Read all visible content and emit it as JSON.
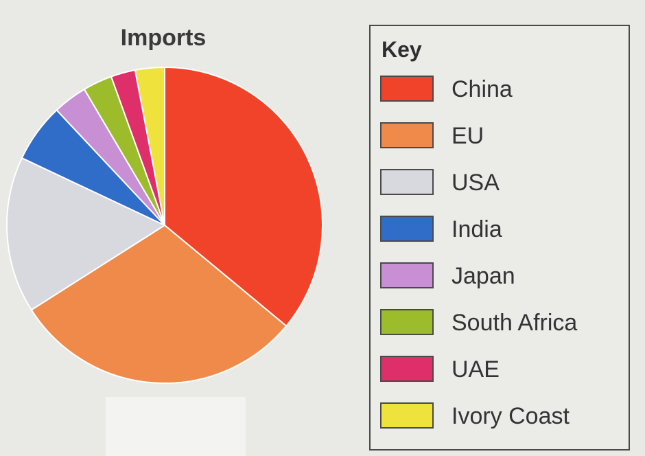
{
  "chart_data": {
    "type": "pie",
    "title": "Imports",
    "legend_title": "Key",
    "legend_position": "right",
    "slices": [
      {
        "label": "China",
        "value": 36,
        "color": "#f0432a"
      },
      {
        "label": "EU",
        "value": 30,
        "color": "#f08a4b"
      },
      {
        "label": "USA",
        "value": 16,
        "color": "#d8d8df"
      },
      {
        "label": "India",
        "value": 6,
        "color": "#2f6dc8"
      },
      {
        "label": "Japan",
        "value": 3.5,
        "color": "#c88fd4"
      },
      {
        "label": "South Africa",
        "value": 3,
        "color": "#9cbc2c"
      },
      {
        "label": "UAE",
        "value": 2.5,
        "color": "#df2f6b"
      },
      {
        "label": "Ivory Coast",
        "value": 3,
        "color": "#efe23c"
      }
    ]
  }
}
